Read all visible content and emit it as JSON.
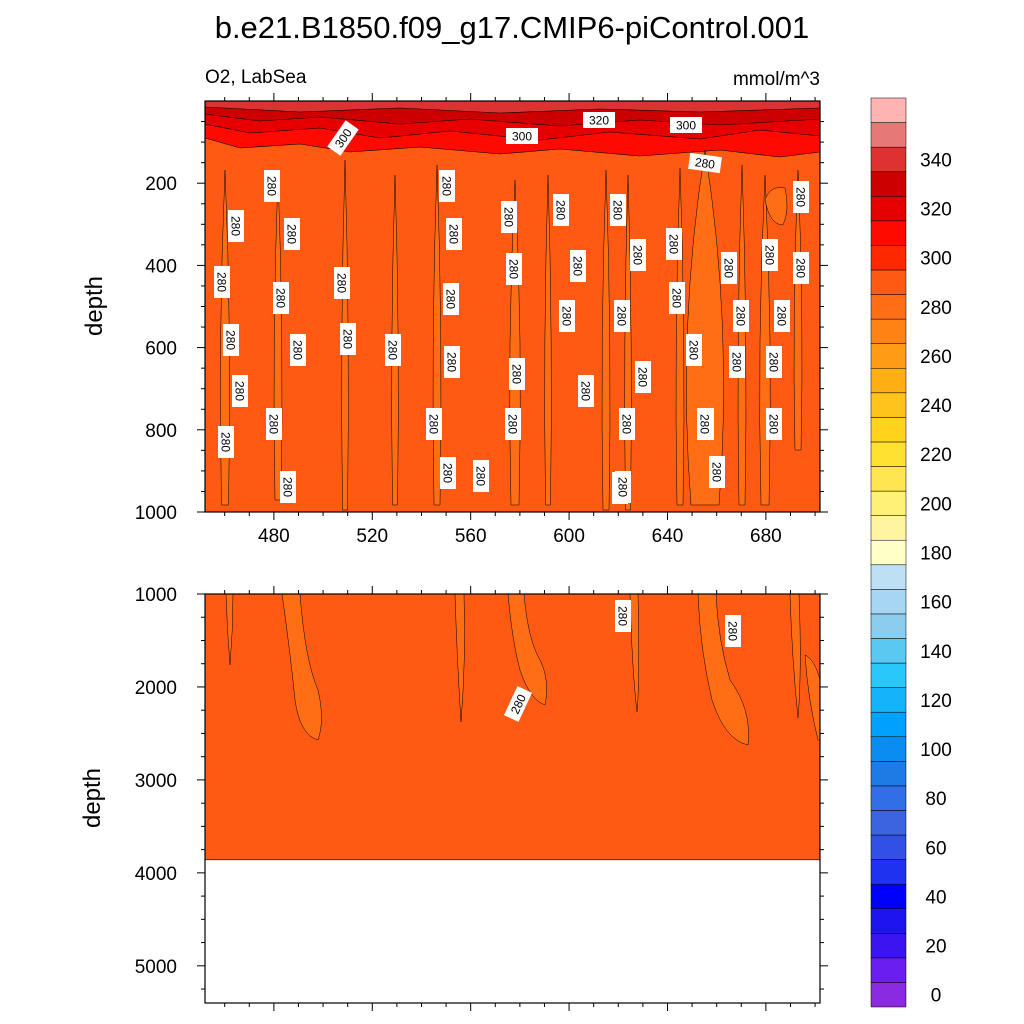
{
  "chart_data": {
    "type": "heatmap",
    "title": "b.e21.B1850.f09_g17.CMIP6-piControl.001",
    "variable_label": "O2, LabSea",
    "units_label": "mmol/m^3",
    "colorbar": {
      "levels": [
        0,
        10,
        20,
        30,
        40,
        50,
        60,
        70,
        80,
        90,
        100,
        110,
        120,
        130,
        140,
        150,
        160,
        170,
        180,
        190,
        200,
        210,
        220,
        230,
        240,
        250,
        260,
        270,
        280,
        290,
        300,
        310,
        320,
        330,
        340,
        350
      ],
      "tick_labels": [
        "0",
        "20",
        "40",
        "60",
        "80",
        "100",
        "120",
        "140",
        "160",
        "180",
        "200",
        "220",
        "240",
        "260",
        "280",
        "300",
        "320",
        "340"
      ],
      "colors": [
        "#8a2be2",
        "#6a1ef0",
        "#3c14f0",
        "#1e14f0",
        "#0000ff",
        "#1e32f0",
        "#3250e6",
        "#3c64e0",
        "#326ee6",
        "#1e7be6",
        "#0a8cf0",
        "#00a0ff",
        "#14b4fa",
        "#28c8fa",
        "#5ac8f0",
        "#8ccdee",
        "#a6d6f2",
        "#bee0f4",
        "#ffffc8",
        "#fff5a0",
        "#fff078",
        "#ffe650",
        "#ffe132",
        "#ffd21e",
        "#ffc31e",
        "#ffaf14",
        "#ff9b14",
        "#ff8214",
        "#ff6e14",
        "#ff5a14",
        "#ff2800",
        "#ff0a00",
        "#e60000",
        "#cd0000",
        "#dc3232",
        "#e67878",
        "#ffb4b4"
      ]
    },
    "panels": [
      {
        "name": "upper",
        "ylabel": "depth",
        "y_range": [
          0,
          1000
        ],
        "y_ticks": [
          "200",
          "400",
          "600",
          "800",
          "1000"
        ],
        "x_range": [
          452,
          702
        ],
        "x_ticks": [
          "480",
          "520",
          "560",
          "600",
          "640",
          "680"
        ],
        "dominant_value": 280,
        "contour_labels": [
          "300",
          "300",
          "320",
          "300",
          "280",
          "280",
          "280",
          "280",
          "280",
          "280",
          "280",
          "280",
          "280",
          "280",
          "280",
          "280",
          "280",
          "280",
          "280",
          "280",
          "280",
          "280",
          "280",
          "280",
          "280",
          "280",
          "280",
          "280",
          "280",
          "280",
          "280",
          "280",
          "280",
          "280",
          "280",
          "280",
          "280",
          "280",
          "280",
          "280",
          "280",
          "280",
          "280",
          "280",
          "280",
          "280",
          "280",
          "280",
          "280",
          "280",
          "280",
          "280",
          "280",
          "280",
          "280",
          "280"
        ]
      },
      {
        "name": "lower",
        "ylabel": "depth",
        "y_range": [
          1000,
          5400
        ],
        "y_ticks": [
          "1000",
          "2000",
          "3000",
          "4000",
          "5000"
        ],
        "x_range": [
          452,
          702
        ],
        "x_ticks": [],
        "dominant_value": 280,
        "sea_floor_depth": 3860,
        "contour_labels": [
          "280",
          "280",
          "280"
        ]
      }
    ]
  }
}
